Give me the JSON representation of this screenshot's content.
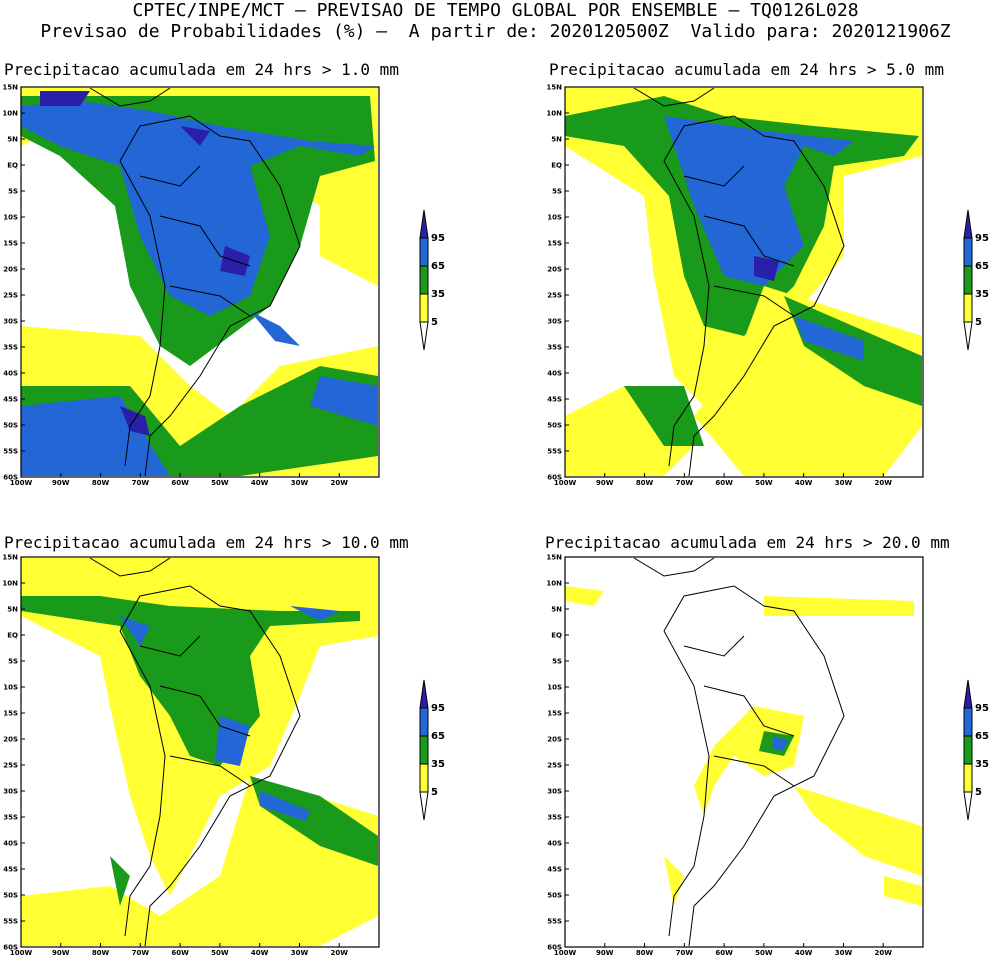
{
  "header": {
    "line1": "CPTEC/INPE/MCT — PREVISAO DE TEMPO GLOBAL POR ENSEMBLE — TQ0126L028",
    "line2": "Previsao de Probabilidades (%) —  A partir de: 2020120500Z  Valido para: 2020121906Z"
  },
  "lat_labels": [
    "15N",
    "10N",
    "5N",
    "EQ",
    "5S",
    "10S",
    "15S",
    "20S",
    "25S",
    "30S",
    "35S",
    "40S",
    "45S",
    "50S",
    "55S",
    "60S"
  ],
  "lon_labels": [
    "100W",
    "90W",
    "80W",
    "70W",
    "60W",
    "50W",
    "40W",
    "30W",
    "20W"
  ],
  "colors": {
    "c5": "#ffff33",
    "c35": "#1a9a1a",
    "c65": "#2366d6",
    "c95": "#2a1fa8",
    "land": "#ffffff",
    "border": "#000000"
  },
  "colorbar": {
    "labels": [
      "95",
      "65",
      "35",
      "5"
    ]
  },
  "panels": [
    {
      "title": "Precipitacao acumulada em 24 hrs > 1.0 mm"
    },
    {
      "title": "Precipitacao acumulada em 24 hrs > 5.0 mm"
    },
    {
      "title": "Precipitacao acumulada em 24 hrs > 10.0 mm"
    },
    {
      "title": "Precipitacao acumulada em 24 hrs > 20.0 mm"
    }
  ]
}
